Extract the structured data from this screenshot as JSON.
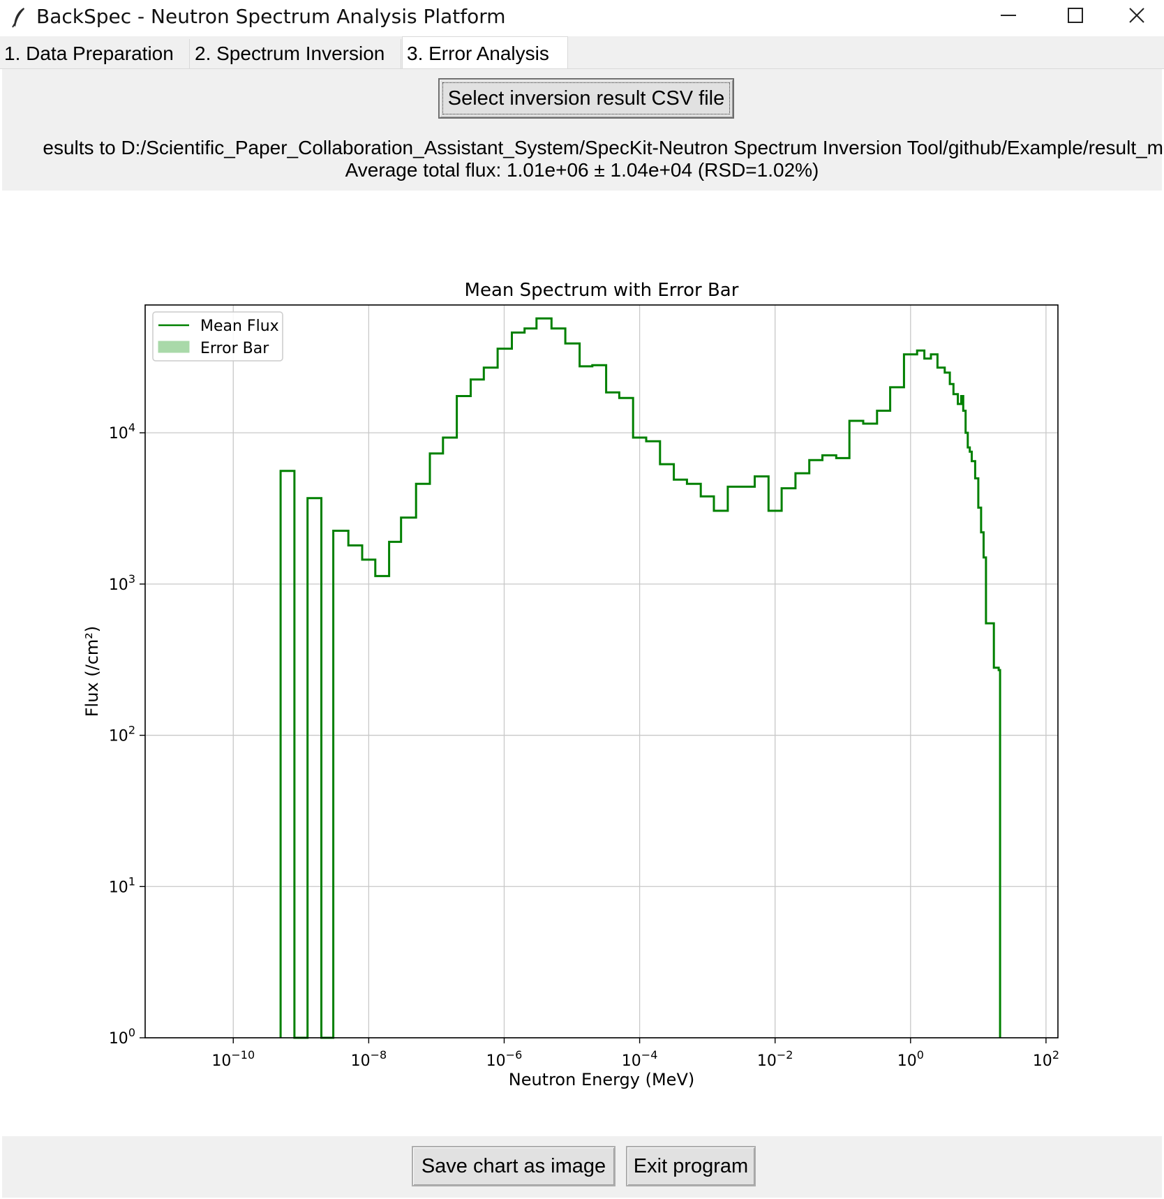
{
  "window": {
    "title": "BackSpec - Neutron Spectrum Analysis Platform",
    "icon": "feather-icon",
    "controls": [
      "minimize-icon",
      "maximize-icon",
      "close-icon"
    ]
  },
  "tabs": [
    {
      "label": "1.  Data Preparation",
      "active": false
    },
    {
      "label": "2.  Spectrum Inversion",
      "active": false
    },
    {
      "label": "3.  Error Analysis",
      "active": true
    }
  ],
  "error_analysis": {
    "select_button": "Select inversion result CSV file",
    "saved_path_text": "esults to D:/Scientific_Paper_Collaboration_Assistant_System/SpecKit-Neutron Spectrum Inversion Tool/github/Example/result_m",
    "average_flux_text": "Average total flux: 1.01e+06 ± 1.04e+04 (RSD=1.02%)"
  },
  "footer": {
    "save_button": "Save chart as image",
    "exit_button": "Exit program"
  },
  "colors": {
    "line": "#008000",
    "error_fill": "#a9d9a9",
    "grid": "#c8c8c8",
    "panel_bg": "#f0f0f0"
  },
  "chart_data": {
    "type": "line",
    "drawstyle": "steps-post",
    "title": "Mean Spectrum with Error Bar",
    "xlabel": "Neutron Energy (MeV)",
    "ylabel": "Flux (/cm²)",
    "xscale": "log",
    "yscale": "log",
    "xlim": [
      5e-12,
      150
    ],
    "ylim": [
      1,
      70000
    ],
    "xticks": [
      {
        "base": "10",
        "exp": "−10"
      },
      {
        "base": "10",
        "exp": "−8"
      },
      {
        "base": "10",
        "exp": "−6"
      },
      {
        "base": "10",
        "exp": "−4"
      },
      {
        "base": "10",
        "exp": "−2"
      },
      {
        "base": "10",
        "exp": "0"
      },
      {
        "base": "10",
        "exp": "2"
      }
    ],
    "yticks": [
      {
        "base": "10",
        "exp": "0"
      },
      {
        "base": "10",
        "exp": "1"
      },
      {
        "base": "10",
        "exp": "2"
      },
      {
        "base": "10",
        "exp": "3"
      },
      {
        "base": "10",
        "exp": "4"
      }
    ],
    "grid": true,
    "legend": {
      "position": "top-left",
      "entries": [
        "Mean Flux",
        "Error Bar"
      ]
    },
    "series": [
      {
        "name": "Mean Flux",
        "points": [
          [
            5e-10,
            5600
          ],
          [
            8e-10,
            1
          ],
          [
            1.25e-09,
            3700
          ],
          [
            2e-09,
            1
          ],
          [
            3e-09,
            2250
          ],
          [
            5e-09,
            1800
          ],
          [
            8e-09,
            1450
          ],
          [
            1.25e-08,
            1130
          ],
          [
            2e-08,
            1900
          ],
          [
            3e-08,
            2750
          ],
          [
            5e-08,
            4600
          ],
          [
            8e-08,
            7300
          ],
          [
            1.25e-07,
            9300
          ],
          [
            2e-07,
            17500
          ],
          [
            3.2e-07,
            22500
          ],
          [
            5e-07,
            27000
          ],
          [
            8e-07,
            36000
          ],
          [
            1.3e-06,
            46000
          ],
          [
            2e-06,
            49000
          ],
          [
            3e-06,
            57000
          ],
          [
            5e-06,
            49000
          ],
          [
            8e-06,
            39000
          ],
          [
            1.3e-05,
            27500
          ],
          [
            2e-05,
            28000
          ],
          [
            3.2e-05,
            18500
          ],
          [
            5e-05,
            17000
          ],
          [
            8e-05,
            9300
          ],
          [
            0.000125,
            8800
          ],
          [
            0.0002,
            6200
          ],
          [
            0.00032,
            4900
          ],
          [
            0.0005,
            4600
          ],
          [
            0.0008,
            3800
          ],
          [
            0.00125,
            3050
          ],
          [
            0.002,
            4400
          ],
          [
            0.0032,
            4400
          ],
          [
            0.005,
            5150
          ],
          [
            0.008,
            3050
          ],
          [
            0.0125,
            4300
          ],
          [
            0.02,
            5400
          ],
          [
            0.032,
            6600
          ],
          [
            0.05,
            7100
          ],
          [
            0.08,
            6800
          ],
          [
            0.125,
            12000
          ],
          [
            0.2,
            11500
          ],
          [
            0.32,
            14000
          ],
          [
            0.5,
            20000
          ],
          [
            0.8,
            33000
          ],
          [
            1.25,
            35000
          ],
          [
            1.6,
            31000
          ],
          [
            2.0,
            33000
          ],
          [
            2.5,
            27000
          ],
          [
            3.2,
            25000
          ],
          [
            3.8,
            21000
          ],
          [
            4.3,
            18000
          ],
          [
            5.0,
            15500
          ],
          [
            5.6,
            17500
          ],
          [
            6.0,
            14000
          ],
          [
            6.5,
            10000
          ],
          [
            7.0,
            8000
          ],
          [
            7.5,
            7500
          ],
          [
            8.0,
            6500
          ],
          [
            9.0,
            5000
          ],
          [
            10,
            3200
          ],
          [
            11,
            2200
          ],
          [
            12,
            1500
          ],
          [
            13,
            550
          ],
          [
            15,
            550
          ],
          [
            17,
            280
          ],
          [
            20,
            270
          ],
          [
            21,
            1
          ]
        ]
      },
      {
        "name": "Error Bar",
        "values": []
      }
    ]
  }
}
